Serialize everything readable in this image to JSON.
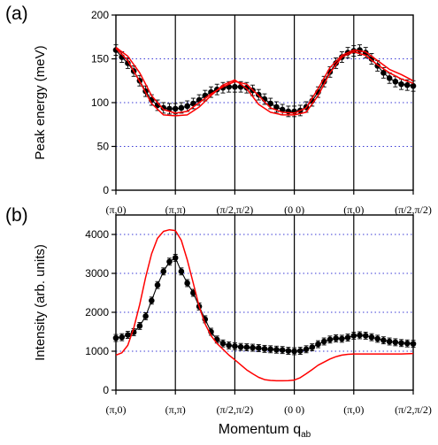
{
  "chart_data": [
    {
      "panel": "(a)",
      "type": "line",
      "ylabel": "Peak energy (meV)",
      "ylim": [
        0,
        200
      ],
      "yticks": [
        "0",
        "50",
        "100",
        "150",
        "200"
      ],
      "grid_y": [
        50,
        100,
        150
      ],
      "x_tick_labels": [
        "(π,0)",
        "(π,π)",
        "(π/2,π/2)",
        "(0 0)",
        "(π,0)",
        "(π/2,π/2)"
      ],
      "xlim": [
        0,
        5
      ],
      "series": [
        {
          "role": "data",
          "color": "#000000",
          "x": [
            0.0,
            0.1,
            0.2,
            0.3,
            0.4,
            0.5,
            0.6,
            0.7,
            0.8,
            0.9,
            1.0,
            1.1,
            1.2,
            1.3,
            1.4,
            1.5,
            1.6,
            1.7,
            1.8,
            1.9,
            2.0,
            2.1,
            2.2,
            2.3,
            2.4,
            2.5,
            2.6,
            2.7,
            2.8,
            2.9,
            3.0,
            3.1,
            3.2,
            3.3,
            3.4,
            3.5,
            3.6,
            3.7,
            3.8,
            3.9,
            4.0,
            4.1,
            4.2,
            4.3,
            4.4,
            4.5,
            4.6,
            4.7,
            4.8,
            4.9,
            5.0
          ],
          "y": [
            160,
            152,
            145,
            136,
            125,
            113,
            103,
            97,
            94,
            93,
            93,
            94,
            96,
            99,
            103,
            108,
            112,
            115,
            117,
            118,
            118,
            118,
            117,
            114,
            109,
            104,
            99,
            95,
            92,
            90,
            90,
            91,
            95,
            102,
            112,
            124,
            135,
            145,
            152,
            157,
            159,
            160,
            157,
            150,
            142,
            134,
            128,
            124,
            121,
            120,
            119
          ],
          "err": 6
        },
        {
          "role": "model-1",
          "color": "#ff0000",
          "x": [
            0.0,
            0.2,
            0.4,
            0.6,
            0.8,
            1.0,
            1.2,
            1.4,
            1.6,
            1.8,
            2.0,
            2.2,
            2.4,
            2.6,
            2.8,
            3.0,
            3.2,
            3.4,
            3.6,
            3.8,
            4.0,
            4.2,
            4.4,
            4.6,
            4.8,
            5.0
          ],
          "y": [
            163,
            153,
            134,
            108,
            92,
            88,
            90,
            100,
            110,
            118,
            124,
            121,
            108,
            94,
            89,
            88,
            94,
            116,
            140,
            154,
            160,
            158,
            148,
            138,
            132,
            125
          ]
        },
        {
          "role": "model-2",
          "color": "#ff0000",
          "x": [
            0.0,
            0.2,
            0.4,
            0.6,
            0.8,
            1.0,
            1.2,
            1.4,
            1.6,
            1.8,
            2.0,
            2.2,
            2.4,
            2.6,
            2.8,
            3.0,
            3.2,
            3.4,
            3.6,
            3.8,
            4.0,
            4.2,
            4.4,
            4.6,
            4.8,
            5.0
          ],
          "y": [
            162,
            148,
            124,
            99,
            86,
            85,
            86,
            95,
            108,
            120,
            126,
            116,
            98,
            89,
            86,
            86,
            89,
            108,
            134,
            152,
            158,
            154,
            143,
            134,
            127,
            122
          ]
        }
      ]
    },
    {
      "panel": "(b)",
      "type": "line",
      "ylabel": "Intensity (arb. units)",
      "ylim": [
        0,
        4500
      ],
      "yticks": [
        "0",
        "1000",
        "2000",
        "3000",
        "4000"
      ],
      "grid_y": [
        1000,
        2000,
        3000,
        4000
      ],
      "x_tick_labels": [
        "(π,0)",
        "(π,π)",
        "(π/2,π/2)",
        "(0 0)",
        "(π,0)",
        "(π/2,π/2)"
      ],
      "xlabel": "Momentum q",
      "xlabel_sub": "ab",
      "xlim": [
        0,
        5
      ],
      "series": [
        {
          "role": "data",
          "color": "#000000",
          "x": [
            0.0,
            0.1,
            0.2,
            0.3,
            0.4,
            0.5,
            0.6,
            0.7,
            0.8,
            0.9,
            1.0,
            1.1,
            1.2,
            1.3,
            1.4,
            1.5,
            1.6,
            1.7,
            1.8,
            1.9,
            2.0,
            2.1,
            2.2,
            2.3,
            2.4,
            2.5,
            2.6,
            2.7,
            2.8,
            2.9,
            3.0,
            3.1,
            3.2,
            3.3,
            3.4,
            3.5,
            3.6,
            3.7,
            3.8,
            3.9,
            4.0,
            4.1,
            4.2,
            4.3,
            4.4,
            4.5,
            4.6,
            4.7,
            4.8,
            4.9,
            5.0
          ],
          "y": [
            1340,
            1360,
            1420,
            1490,
            1650,
            1900,
            2300,
            2700,
            3050,
            3300,
            3400,
            3050,
            2750,
            2500,
            2150,
            1820,
            1500,
            1300,
            1200,
            1150,
            1130,
            1110,
            1100,
            1090,
            1080,
            1060,
            1050,
            1040,
            1030,
            1010,
            1000,
            1010,
            1050,
            1100,
            1180,
            1250,
            1300,
            1330,
            1320,
            1350,
            1400,
            1410,
            1400,
            1360,
            1320,
            1280,
            1250,
            1230,
            1210,
            1200,
            1190
          ],
          "err": 90
        },
        {
          "role": "model",
          "color": "#ff0000",
          "x": [
            0.0,
            0.1,
            0.2,
            0.3,
            0.4,
            0.5,
            0.6,
            0.7,
            0.8,
            0.9,
            1.0,
            1.1,
            1.2,
            1.3,
            1.4,
            1.5,
            1.6,
            1.7,
            1.8,
            1.9,
            2.0,
            2.1,
            2.2,
            2.3,
            2.4,
            2.5,
            2.6,
            2.7,
            2.8,
            2.9,
            3.0,
            3.1,
            3.2,
            3.3,
            3.4,
            3.5,
            3.6,
            3.7,
            3.8,
            3.9,
            4.0,
            4.2,
            4.4,
            4.6,
            4.8,
            5.0
          ],
          "y": [
            900,
            960,
            1150,
            1600,
            2200,
            2900,
            3500,
            3900,
            4080,
            4120,
            4100,
            3850,
            3350,
            2750,
            2150,
            1700,
            1400,
            1200,
            1050,
            900,
            780,
            650,
            520,
            420,
            330,
            270,
            250,
            240,
            240,
            245,
            260,
            320,
            420,
            530,
            640,
            720,
            800,
            860,
            900,
            920,
            930,
            930,
            930,
            930,
            930,
            940
          ]
        }
      ]
    }
  ]
}
